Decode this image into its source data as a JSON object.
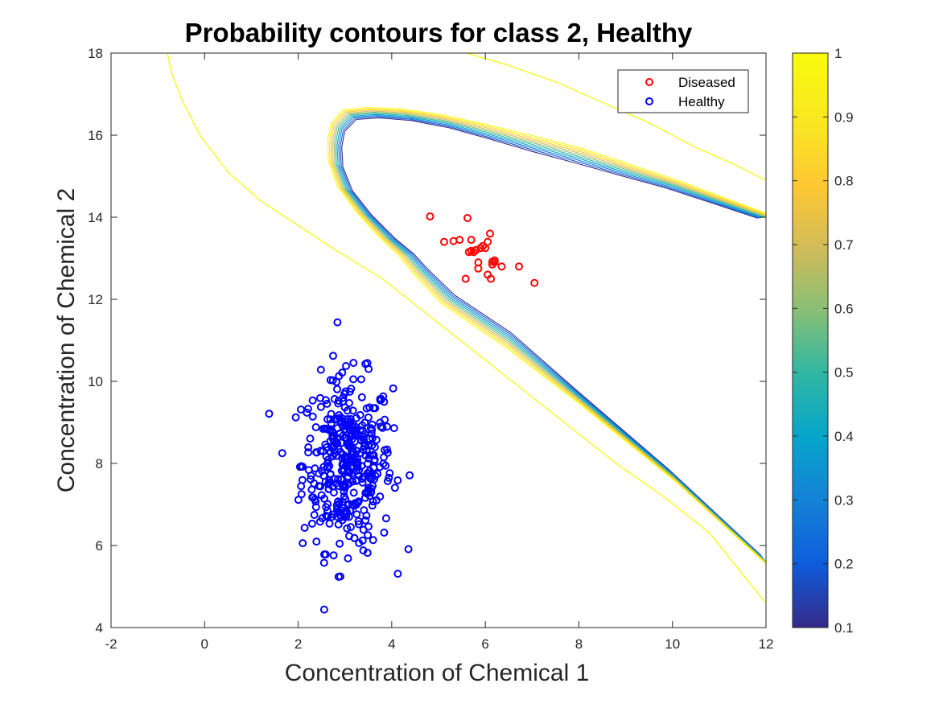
{
  "chart_data": {
    "type": "scatter",
    "title": "Probability contours for class 2, Healthy",
    "xlabel": "Concentration of Chemical 1",
    "ylabel": "Concentration of Chemical 2",
    "xlim": [
      -2,
      12
    ],
    "ylim": [
      4,
      18
    ],
    "xticks": [
      -2,
      0,
      2,
      4,
      6,
      8,
      10,
      12
    ],
    "yticks": [
      4,
      6,
      8,
      10,
      12,
      14,
      16,
      18
    ],
    "grid": false,
    "legend_position": "top-right",
    "series": [
      {
        "name": "Diseased",
        "color": "#ff0000",
        "marker": "circle",
        "x": [
          4.82,
          5.12,
          5.32,
          5.45,
          5.62,
          5.65,
          5.7,
          5.75,
          5.8,
          5.85,
          5.9,
          5.95,
          6.0,
          6.05,
          6.1,
          6.12,
          6.15,
          6.2,
          5.58,
          5.85,
          6.05,
          6.2,
          6.35,
          6.72,
          7.05,
          5.7,
          6.15
        ],
        "y": [
          14.02,
          13.4,
          13.42,
          13.45,
          13.98,
          13.15,
          13.45,
          13.15,
          13.2,
          12.9,
          13.25,
          13.3,
          13.25,
          13.4,
          13.6,
          12.5,
          12.85,
          12.95,
          12.5,
          12.75,
          12.6,
          12.9,
          12.8,
          12.8,
          12.4,
          13.18,
          12.92
        ]
      },
      {
        "name": "Healthy",
        "color": "#0000ff",
        "marker": "circle",
        "generator": {
          "count": 400,
          "x_mean": 3.05,
          "x_sd": 0.48,
          "y_mean": 8.0,
          "y_sd": 1.05
        }
      }
    ],
    "contours": {
      "levels": [
        0.1,
        0.2,
        0.3,
        0.4,
        0.5,
        0.6,
        0.7,
        0.8,
        0.9,
        1
      ],
      "outer_yellow_curve": {
        "x": [
          -0.8,
          -0.7,
          -0.5,
          -0.1,
          0.5,
          1.2,
          2.0,
          2.8,
          3.8,
          4.8,
          5.8,
          6.8,
          7.8,
          8.8,
          9.8,
          10.8,
          11.5,
          12.0
        ],
        "y": [
          18.0,
          17.5,
          16.9,
          16.0,
          15.1,
          14.4,
          13.8,
          13.2,
          12.5,
          11.6,
          10.7,
          9.8,
          8.9,
          8.0,
          7.2,
          6.3,
          5.3,
          4.6
        ]
      },
      "top_yellow_curve": {
        "x": [
          5.6,
          6.5,
          7.5,
          8.5,
          9.5,
          10.5,
          11.3,
          12.0
        ],
        "y": [
          18.0,
          17.7,
          17.3,
          16.8,
          16.3,
          15.7,
          15.3,
          14.9
        ]
      },
      "inner_boundary": {
        "x": [
          12.0,
          10.0,
          8.0,
          6.5,
          5.2,
          4.6,
          4.3,
          3.9,
          3.4,
          3.0,
          2.8,
          2.78,
          2.85,
          3.1,
          3.6,
          4.3,
          5.1,
          6.0,
          7.0,
          8.0,
          9.0,
          10.0,
          11.0,
          12.0
        ],
        "y": [
          5.6,
          7.7,
          9.6,
          11.0,
          12.0,
          12.7,
          13.1,
          13.5,
          14.1,
          14.7,
          15.3,
          15.8,
          16.2,
          16.5,
          16.55,
          16.5,
          16.35,
          16.1,
          15.8,
          15.5,
          15.15,
          14.8,
          14.4,
          14.0
        ]
      }
    },
    "colorbar": {
      "ticks": [
        0.1,
        0.2,
        0.3,
        0.4,
        0.5,
        0.6,
        0.7,
        0.8,
        0.9,
        1
      ],
      "tick_labels": [
        "0.1",
        "0.2",
        "0.3",
        "0.4",
        "0.5",
        "0.6",
        "0.7",
        "0.8",
        "0.9",
        "1"
      ],
      "colormap": "parula",
      "colors": [
        "#352a87",
        "#0f5cdd",
        "#1481d6",
        "#06a4ca",
        "#2eb7a4",
        "#87bf77",
        "#d1bb59",
        "#fec832",
        "#f9e721",
        "#f9fb0e"
      ]
    }
  }
}
